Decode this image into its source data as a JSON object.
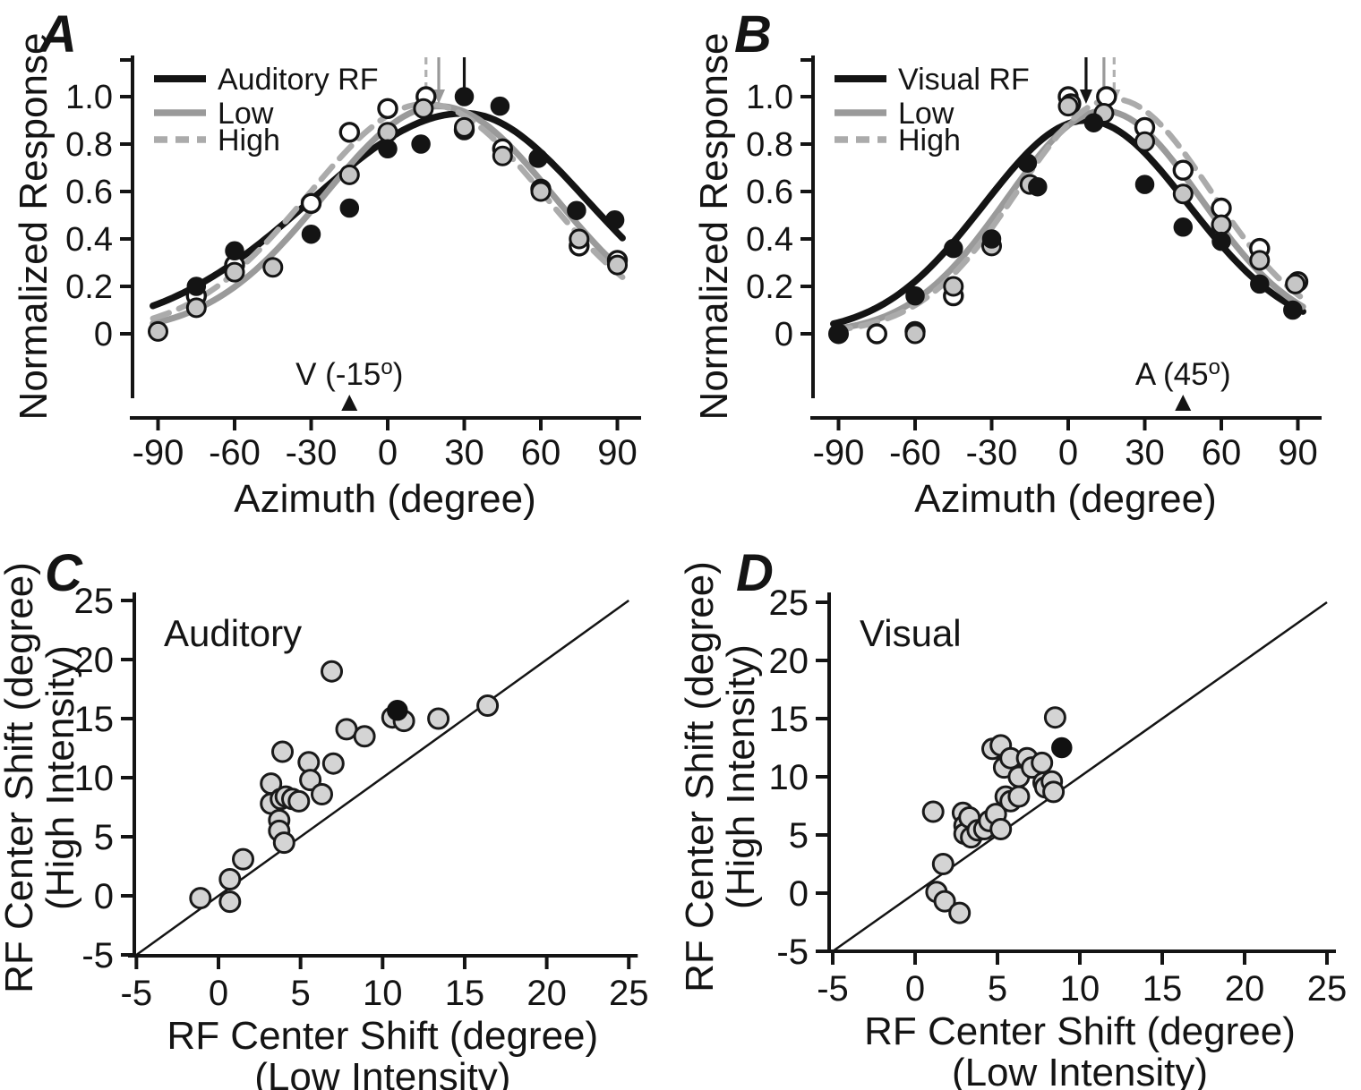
{
  "figure": {
    "background": "#ffffff",
    "ink_color": "#141414"
  },
  "chart_data": [
    {
      "id": "A",
      "panel_label": "A",
      "type": "line",
      "xlabel": "Azimuth (degree)",
      "ylabel": "Normalized Response",
      "x_ticks": [
        "-90",
        "-60",
        "-30",
        "0",
        "30",
        "60",
        "90"
      ],
      "y_ticks": [
        "0",
        "0.2",
        "0.4",
        "0.6",
        "0.8",
        "1.0"
      ],
      "xlim": [
        -105,
        112
      ],
      "ylim": [
        -0.27,
        1.18
      ],
      "grid": false,
      "legend_position": "top-left",
      "legend": [
        {
          "label": "Auditory RF",
          "style": "solid",
          "color": "#141414"
        },
        {
          "label": "Low",
          "style": "solid",
          "color": "#9a9a9a"
        },
        {
          "label": "High",
          "style": "dashed",
          "color": "#ababab"
        }
      ],
      "curves": [
        {
          "name": "Auditory RF",
          "style": "solid",
          "color": "#141414",
          "peak_center": 30,
          "peak_amp": 0.93,
          "sigma_left": 60,
          "sigma_right": 48
        },
        {
          "name": "Low",
          "style": "solid",
          "color": "#9a9a9a",
          "peak_center": 20,
          "peak_amp": 0.96,
          "sigma_left": 45,
          "sigma_right": 45
        },
        {
          "name": "High",
          "style": "dashed",
          "color": "#ababab",
          "peak_center": 15,
          "peak_amp": 0.97,
          "sigma_left": 46,
          "sigma_right": 46
        }
      ],
      "peak_arrows": [
        {
          "x": 15,
          "style": "dashed",
          "color": "#b0b0b0"
        },
        {
          "x": 20,
          "style": "solid",
          "color": "#999999"
        },
        {
          "x": 30,
          "style": "solid",
          "color": "#141414"
        }
      ],
      "stimulus_marker": {
        "x": -15,
        "label_pre": "V (-15",
        "label_sup": "o",
        "label_post": ")"
      },
      "series": [
        {
          "name": "Auditory RF data",
          "marker": "filled-black",
          "points": [
            [
              -75,
              0.2
            ],
            [
              -60,
              0.35
            ],
            [
              -30,
              0.42
            ],
            [
              -15,
              0.53
            ],
            [
              0,
              0.78
            ],
            [
              13,
              0.8
            ],
            [
              30,
              1.0
            ],
            [
              44,
              0.96
            ],
            [
              59,
              0.74
            ],
            [
              74,
              0.52
            ],
            [
              89,
              0.48
            ]
          ]
        },
        {
          "name": "Low data",
          "marker": "filled-gray",
          "points": [
            [
              -90,
              0.01
            ],
            [
              -75,
              0.11
            ],
            [
              -60,
              0.26
            ],
            [
              -45,
              0.28
            ],
            [
              -15,
              0.67
            ],
            [
              0,
              0.85
            ],
            [
              14,
              0.95
            ],
            [
              30,
              0.87
            ],
            [
              45,
              0.75
            ],
            [
              60,
              0.6
            ],
            [
              75,
              0.4
            ],
            [
              90,
              0.29
            ]
          ]
        },
        {
          "name": "High data",
          "marker": "open",
          "points": [
            [
              -75,
              0.16
            ],
            [
              -60,
              0.29
            ],
            [
              -30,
              0.55
            ],
            [
              -15,
              0.85
            ],
            [
              0,
              0.95
            ],
            [
              15,
              1.0
            ],
            [
              30,
              0.86
            ],
            [
              45,
              0.78
            ],
            [
              60,
              0.61
            ],
            [
              75,
              0.37
            ],
            [
              90,
              0.31
            ]
          ]
        }
      ]
    },
    {
      "id": "B",
      "panel_label": "B",
      "type": "line",
      "xlabel": "Azimuth (degree)",
      "ylabel": "Normalized Response",
      "x_ticks": [
        "-90",
        "-60",
        "-30",
        "0",
        "30",
        "60",
        "90"
      ],
      "y_ticks": [
        "0",
        "0.2",
        "0.4",
        "0.6",
        "0.8",
        "1.0"
      ],
      "xlim": [
        -105,
        112
      ],
      "ylim": [
        -0.27,
        1.18
      ],
      "grid": false,
      "legend_position": "top-left",
      "legend": [
        {
          "label": "Visual RF",
          "style": "solid",
          "color": "#141414"
        },
        {
          "label": "Low",
          "style": "solid",
          "color": "#9a9a9a"
        },
        {
          "label": "High",
          "style": "dashed",
          "color": "#ababab"
        }
      ],
      "curves": [
        {
          "name": "Visual RF",
          "style": "solid",
          "color": "#141414",
          "peak_center": 7,
          "peak_amp": 0.9,
          "sigma_left": 40,
          "sigma_right": 40
        },
        {
          "name": "Low",
          "style": "solid",
          "color": "#9a9a9a",
          "peak_center": 14,
          "peak_amp": 0.94,
          "sigma_left": 38,
          "sigma_right": 38
        },
        {
          "name": "High",
          "style": "dashed",
          "color": "#ababab",
          "peak_center": 18,
          "peak_amp": 0.99,
          "sigma_left": 38,
          "sigma_right": 38
        }
      ],
      "peak_arrows": [
        {
          "x": 7,
          "style": "solid",
          "color": "#141414"
        },
        {
          "x": 14,
          "style": "solid",
          "color": "#999999"
        },
        {
          "x": 18,
          "style": "dashed",
          "color": "#b0b0b0"
        }
      ],
      "stimulus_marker": {
        "x": 45,
        "label_pre": "A (45",
        "label_sup": "o",
        "label_post": ")"
      },
      "series": [
        {
          "name": "Visual RF data",
          "marker": "filled-black",
          "points": [
            [
              -90,
              0.0
            ],
            [
              -60,
              0.16
            ],
            [
              -45,
              0.36
            ],
            [
              -30,
              0.4
            ],
            [
              -16,
              0.72
            ],
            [
              -12,
              0.62
            ],
            [
              10,
              0.89
            ],
            [
              30,
              0.63
            ],
            [
              45,
              0.45
            ],
            [
              60,
              0.39
            ],
            [
              75,
              0.21
            ],
            [
              88,
              0.1
            ]
          ]
        },
        {
          "name": "Low data",
          "marker": "filled-gray",
          "points": [
            [
              -90,
              0.0
            ],
            [
              -60,
              0.0
            ],
            [
              -45,
              0.2
            ],
            [
              -30,
              0.37
            ],
            [
              -15,
              0.63
            ],
            [
              0,
              0.96
            ],
            [
              14,
              0.93
            ],
            [
              30,
              0.81
            ],
            [
              45,
              0.59
            ],
            [
              60,
              0.46
            ],
            [
              75,
              0.31
            ],
            [
              89,
              0.21
            ]
          ]
        },
        {
          "name": "High data",
          "marker": "open",
          "points": [
            [
              -75,
              0.0
            ],
            [
              -60,
              0.01
            ],
            [
              -45,
              0.16
            ],
            [
              0,
              1.0
            ],
            [
              1,
              0.97
            ],
            [
              15,
              1.0
            ],
            [
              30,
              0.87
            ],
            [
              45,
              0.69
            ],
            [
              60,
              0.53
            ],
            [
              75,
              0.36
            ],
            [
              90,
              0.22
            ]
          ]
        }
      ]
    },
    {
      "id": "C",
      "panel_label": "C",
      "type": "scatter",
      "annotation": "Auditory",
      "xlabel_line1": "RF Center Shift (degree)",
      "xlabel_line2": "(Low Intensity)",
      "ylabel_line1": "RF Center Shift (degree)",
      "ylabel_line2": "(High Intensity)",
      "x_ticks": [
        "-5",
        "0",
        "5",
        "10",
        "15",
        "20",
        "25"
      ],
      "y_ticks": [
        "-5",
        "0",
        "5",
        "10",
        "15",
        "20",
        "25"
      ],
      "xlim": [
        -5,
        25
      ],
      "ylim": [
        -5,
        25
      ],
      "grid": false,
      "identity_line": true,
      "series": [
        {
          "name": "population cells",
          "marker": "filled-gray",
          "points": [
            [
              -1.1,
              -0.2
            ],
            [
              0.7,
              1.4
            ],
            [
              0.7,
              -0.5
            ],
            [
              1.5,
              3.1
            ],
            [
              3.2,
              9.5
            ],
            [
              3.2,
              7.8
            ],
            [
              3.7,
              6.4
            ],
            [
              3.7,
              5.5
            ],
            [
              3.8,
              8.2
            ],
            [
              3.9,
              12.2
            ],
            [
              4.0,
              4.5
            ],
            [
              4.1,
              8.4
            ],
            [
              4.5,
              8.2
            ],
            [
              4.9,
              8.0
            ],
            [
              5.5,
              11.3
            ],
            [
              5.6,
              9.8
            ],
            [
              6.3,
              8.6
            ],
            [
              6.9,
              19.0
            ],
            [
              7.0,
              11.2
            ],
            [
              7.8,
              14.1
            ],
            [
              8.9,
              13.5
            ],
            [
              10.6,
              15.1
            ],
            [
              11.3,
              14.8
            ],
            [
              13.4,
              15.0
            ],
            [
              16.4,
              16.1
            ]
          ]
        },
        {
          "name": "example cell",
          "marker": "filled-black",
          "points": [
            [
              10.9,
              15.7
            ]
          ]
        }
      ]
    },
    {
      "id": "D",
      "panel_label": "D",
      "type": "scatter",
      "annotation": "Visual",
      "xlabel_line1": "RF Center Shift (degree)",
      "xlabel_line2": "(Low Intensity)",
      "ylabel_line1": "RF Center Shift (degree)",
      "ylabel_line2": "(High Intensity)",
      "x_ticks": [
        "-5",
        "0",
        "5",
        "10",
        "15",
        "20",
        "25"
      ],
      "y_ticks": [
        "-5",
        "0",
        "5",
        "10",
        "15",
        "20",
        "25"
      ],
      "xlim": [
        -5,
        25
      ],
      "ylim": [
        -5,
        25
      ],
      "grid": false,
      "identity_line": true,
      "series": [
        {
          "name": "population cells",
          "marker": "filled-gray",
          "points": [
            [
              1.1,
              7.0
            ],
            [
              1.3,
              0.1
            ],
            [
              1.7,
              2.5
            ],
            [
              1.8,
              -0.7
            ],
            [
              2.7,
              -1.7
            ],
            [
              2.9,
              6.9
            ],
            [
              3.0,
              5.8
            ],
            [
              3.0,
              5.1
            ],
            [
              3.3,
              6.5
            ],
            [
              3.4,
              4.8
            ],
            [
              3.8,
              5.4
            ],
            [
              4.2,
              5.5
            ],
            [
              4.5,
              6.2
            ],
            [
              4.7,
              12.4
            ],
            [
              4.9,
              6.8
            ],
            [
              5.2,
              12.7
            ],
            [
              5.2,
              5.5
            ],
            [
              5.4,
              10.8
            ],
            [
              5.5,
              8.3
            ],
            [
              5.8,
              11.6
            ],
            [
              5.8,
              7.9
            ],
            [
              6.3,
              8.3
            ],
            [
              6.3,
              10.0
            ],
            [
              6.8,
              11.6
            ],
            [
              7.1,
              10.8
            ],
            [
              7.7,
              11.2
            ],
            [
              7.8,
              9.5
            ],
            [
              7.9,
              9.1
            ],
            [
              8.3,
              9.6
            ],
            [
              8.4,
              8.7
            ],
            [
              8.5,
              15.1
            ]
          ]
        },
        {
          "name": "example cell",
          "marker": "filled-black",
          "points": [
            [
              8.9,
              12.5
            ]
          ]
        }
      ]
    }
  ]
}
